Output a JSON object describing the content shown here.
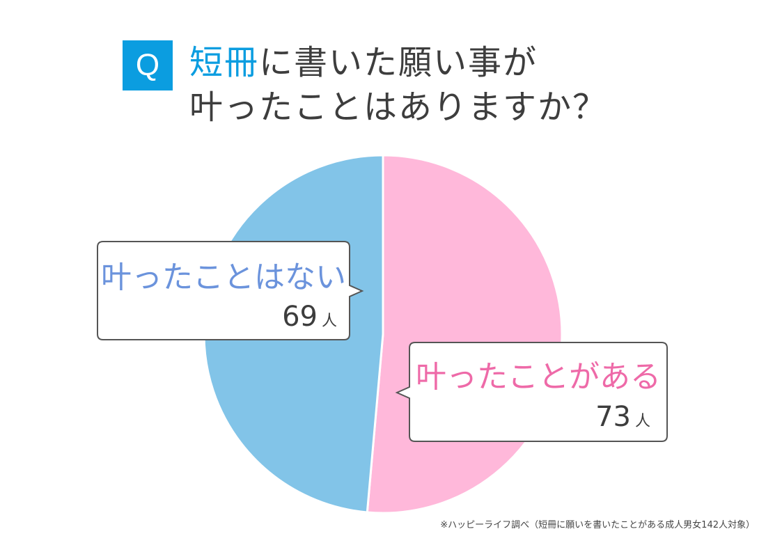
{
  "question": {
    "badge": "Q",
    "line1_highlight": "短冊",
    "line1_rest": "に書いた願い事が",
    "line2": "叶ったことはありますか？"
  },
  "chart_data": {
    "type": "pie",
    "categories": [
      "叶ったことがある",
      "叶ったことはない"
    ],
    "values": [
      73,
      69
    ],
    "unit": "人",
    "total": 142,
    "start_angle": "12 o'clock, clockwise",
    "colors": {
      "叶ったことがある": "#ffb8da",
      "叶ったことはない": "#82c4e8"
    },
    "label_colors": {
      "叶ったことがある": "#ee6aa8",
      "叶ったことはない": "#6b93dc"
    }
  },
  "callouts": {
    "yes": {
      "label": "叶ったことがある",
      "count": "73",
      "unit": "人"
    },
    "no": {
      "label": "叶ったことはない",
      "count": "69",
      "unit": "人"
    }
  },
  "footnote": "※ハッピーライフ調べ（短冊に願いを書いたことがある成人男女142人対象）"
}
